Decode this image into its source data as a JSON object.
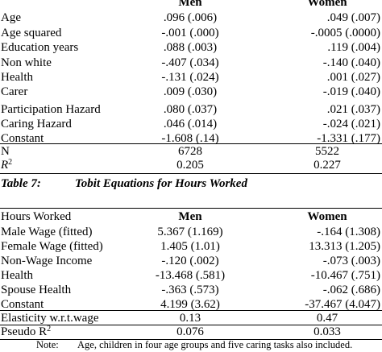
{
  "table1": {
    "col1": "Men",
    "col2": "Women",
    "rows": [
      {
        "label": "Age",
        "men": ".096 (.006)",
        "women": ".049 (.007)"
      },
      {
        "label": "Age squared",
        "men": "-.001 (.000)",
        "women": "-.0005 (.0000)"
      },
      {
        "label": "Education years",
        "men": ".088 (.003)",
        "women": ".119 (.004)"
      },
      {
        "label": "Non white",
        "men": "-.407 (.034)",
        "women": "-.140 (.040)"
      },
      {
        "label": "Health",
        "men": "-.131 (.024)",
        "women": ".001 (.027)"
      },
      {
        "label": "Carer",
        "men": ".009 (.030)",
        "women": "-.019 (.040)"
      },
      {
        "label": "Participation Hazard",
        "men": ".080 (.037)",
        "women": ".021 (.037)"
      },
      {
        "label": "Caring Hazard",
        "men": ".046 (.014)",
        "women": "-.024 (.021)"
      },
      {
        "label": "Constant",
        "men": "-1.608 (.14)",
        "women": "-1.331 (.177)"
      }
    ],
    "n_label": "N",
    "n_men": "6728",
    "n_women": "5522",
    "r2_label": "R",
    "r2_sup": "2",
    "r2_men": "0.205",
    "r2_women": "0.227"
  },
  "caption": {
    "number": "Table 7:",
    "title": "Tobit Equations for Hours Worked"
  },
  "table2": {
    "header_label": "Hours Worked",
    "col1": "Men",
    "col2": "Women",
    "rows": [
      {
        "label": "Male Wage (fitted)",
        "men": "5.367 (1.169)",
        "women": "-.164 (1.308)"
      },
      {
        "label": "Female Wage (fitted)",
        "men": "1.405 (1.01)",
        "women": "13.313 (1.205)"
      },
      {
        "label": "Non-Wage Income",
        "men": "-.120 (.002)",
        "women": "-.073 (.003)"
      },
      {
        "label": "Health",
        "men": "-13.468 (.581)",
        "women": "-10.467 (.751)"
      },
      {
        "label": "Spouse Health",
        "men": "-.363 (.573)",
        "women": "-.062 (.686)"
      },
      {
        "label": "Constant",
        "men": "4.199 (3.62)",
        "women": "-37.467 (4.047)"
      }
    ],
    "elasticity_label": "Elasticity w.r.t.wage",
    "elasticity_men": "0.13",
    "elasticity_women": "0.47",
    "pseudo_label": "Pseudo R",
    "pseudo_sup": "2",
    "pseudo_men": "0.076",
    "pseudo_women": "0.033"
  },
  "note": {
    "label": "Note:",
    "text": "Age, children in four age groups and five caring tasks also included."
  }
}
